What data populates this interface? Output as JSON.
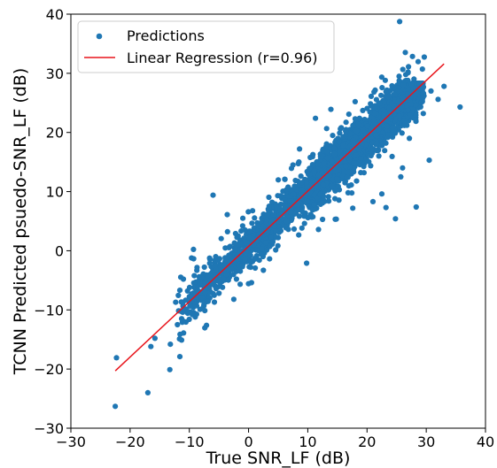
{
  "chart_data": {
    "type": "scatter",
    "xlabel": "True SNR_LF (dB)",
    "ylabel": "TCNN Predicted psuedo-SNR_LF (dB)",
    "xlim": [
      -30,
      40
    ],
    "ylim": [
      -30,
      40
    ],
    "xticks": [
      -30,
      -20,
      -10,
      0,
      10,
      20,
      30,
      40
    ],
    "yticks": [
      -30,
      -20,
      -10,
      0,
      10,
      20,
      30,
      40
    ],
    "grid": false,
    "legend": {
      "location": "upper-left",
      "entries": [
        {
          "label": "Predictions",
          "marker": "dot",
          "color": "#1f77b4"
        },
        {
          "label": "Linear Regression (r=0.96)",
          "marker": "line",
          "color": "#e8141b"
        }
      ]
    },
    "series": [
      {
        "name": "Predictions",
        "color": "#1f77b4",
        "description_points": [
          [
            -22.5,
            -26.3
          ],
          [
            -22.3,
            -18.1
          ],
          [
            -17.0,
            -24.0
          ],
          [
            -16.5,
            -16.2
          ],
          [
            -15.8,
            -14.8
          ],
          [
            -13.3,
            -20.1
          ],
          [
            -13.2,
            -15.8
          ],
          [
            -12.0,
            -12.5
          ],
          [
            -11.6,
            -17.9
          ],
          [
            -11.3,
            -15.1
          ],
          [
            -12.3,
            -8.7
          ],
          [
            -11.5,
            -10.2
          ],
          [
            -10.3,
            -6.8
          ],
          [
            -9.5,
            -10.8
          ],
          [
            -8.2,
            -5.4
          ],
          [
            -7.1,
            -12.6
          ],
          [
            -6.8,
            -6.3
          ],
          [
            -6.0,
            9.4
          ],
          [
            -5.5,
            -3.2
          ],
          [
            -4.2,
            -4.8
          ],
          [
            -3.6,
            6.1
          ],
          [
            -2.5,
            -8.2
          ],
          [
            -2.2,
            2.9
          ],
          [
            -1.0,
            4.2
          ],
          [
            9.8,
            -2.1
          ],
          [
            10.4,
            9.9
          ],
          [
            8.5,
            15.0
          ],
          [
            13.2,
            16.8
          ],
          [
            14.2,
            19.5
          ],
          [
            15.5,
            20.6
          ],
          [
            18.0,
            25.2
          ],
          [
            16.8,
            9.8
          ],
          [
            17.6,
            7.2
          ],
          [
            21.0,
            8.3
          ],
          [
            22.5,
            9.6
          ],
          [
            23.2,
            7.3
          ],
          [
            24.8,
            5.4
          ],
          [
            28.3,
            7.4
          ],
          [
            30.5,
            15.3
          ],
          [
            30.8,
            27.0
          ],
          [
            33.0,
            27.8
          ],
          [
            26.0,
            14.0
          ],
          [
            25.7,
            12.5
          ],
          [
            7.5,
            14.5
          ],
          [
            6.2,
            8.5
          ],
          [
            4.1,
            5.2
          ],
          [
            2.5,
            -3.3
          ],
          [
            0.5,
            -5.4
          ],
          [
            -0.6,
            3.5
          ],
          [
            11.8,
            3.6
          ],
          [
            12.5,
            5.3
          ],
          [
            19.5,
            13.2
          ],
          [
            8.6,
            17.2
          ],
          [
            11.3,
            22.4
          ],
          [
            13.9,
            23.9
          ],
          [
            20.7,
            26.1
          ],
          [
            26.5,
            21.5
          ],
          [
            29.5,
            23.2
          ],
          [
            32.0,
            25.6
          ],
          [
            35.7,
            24.3
          ]
        ]
      },
      {
        "name": "Linear Regression (r=0.96)",
        "color": "#e8141b",
        "x": [
          -22.5,
          33.0
        ],
        "y": [
          -20.3,
          31.6
        ]
      }
    ]
  }
}
